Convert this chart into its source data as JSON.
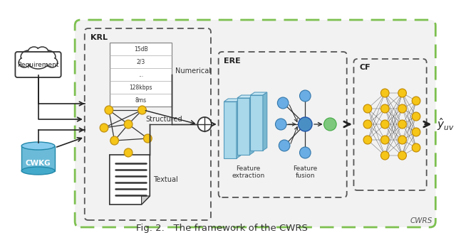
{
  "title": "Fig. 2.   The framework of the CWRS",
  "outer_box_color": "#7dc050",
  "krl_label": "KRL",
  "ere_label": "ERE",
  "cf_label": "CF",
  "cwrs_label": "CWRS",
  "numerical_label": "Numerical",
  "structured_label": "Structured",
  "textual_label": "Textual",
  "feature_extraction_label": "Feature\nextraction",
  "feature_fusion_label": "Feature\nfusion",
  "yhat_label": "$\\hat{y}_{uv}$",
  "requirement_label": "Requirement",
  "cwkg_label": "CWKG",
  "node_yellow": "#f5c518",
  "node_blue": "#6aade4",
  "node_blue_center": "#4a8fc4",
  "node_green": "#7dc87d",
  "panel_face": "#a8d8ea",
  "panel_side": "#7ab8d0",
  "panel_top": "#c8e8f5"
}
